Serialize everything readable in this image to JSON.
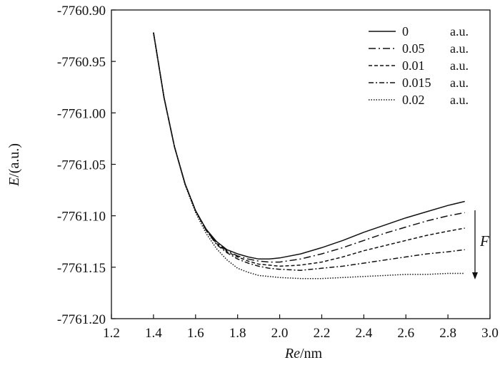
{
  "chart_data": {
    "type": "line",
    "xlabel": {
      "italic": "Re",
      "rest": "/nm"
    },
    "ylabel": {
      "italic": "E",
      "rest": "/(a.u.)"
    },
    "xlim": [
      1.2,
      3.0
    ],
    "ylim": [
      -7761.2,
      -7760.9
    ],
    "x_ticks": [
      "1.2",
      "1.4",
      "1.6",
      "1.8",
      "2.0",
      "2.2",
      "2.4",
      "2.6",
      "2.8",
      "3.0"
    ],
    "y_ticks": [
      "-7760.90",
      "-7760.95",
      "-7761.00",
      "-7761.05",
      "-7761.10",
      "-7761.15",
      "-7761.20"
    ],
    "x_tick_values": [
      1.2,
      1.4,
      1.6,
      1.8,
      2.0,
      2.2,
      2.4,
      2.6,
      2.8,
      3.0
    ],
    "y_tick_values": [
      -7760.9,
      -7760.95,
      -7761.0,
      -7761.05,
      -7761.1,
      -7761.15,
      -7761.2
    ],
    "grid": false,
    "legend_position": "top-right",
    "legend_unit": "a.u.",
    "x": [
      1.4,
      1.45,
      1.5,
      1.55,
      1.6,
      1.65,
      1.7,
      1.75,
      1.8,
      1.85,
      1.9,
      1.95,
      2.0,
      2.1,
      2.2,
      2.3,
      2.4,
      2.5,
      2.6,
      2.7,
      2.8,
      2.88
    ],
    "series": [
      {
        "name": "0",
        "dash": "solid",
        "values": [
          -7760.922,
          -7760.985,
          -7761.033,
          -7761.069,
          -7761.095,
          -7761.113,
          -7761.125,
          -7761.133,
          -7761.137,
          -7761.14,
          -7761.142,
          -7761.142,
          -7761.141,
          -7761.137,
          -7761.131,
          -7761.124,
          -7761.116,
          -7761.109,
          -7761.102,
          -7761.096,
          -7761.09,
          -7761.086
        ]
      },
      {
        "name": "0.05",
        "dash": "dashdot",
        "values": [
          -7760.922,
          -7760.985,
          -7761.033,
          -7761.069,
          -7761.095,
          -7761.113,
          -7761.126,
          -7761.134,
          -7761.139,
          -7761.142,
          -7761.144,
          -7761.145,
          -7761.145,
          -7761.142,
          -7761.137,
          -7761.131,
          -7761.124,
          -7761.117,
          -7761.111,
          -7761.105,
          -7761.1,
          -7761.097
        ]
      },
      {
        "name": "0.01",
        "dash": "dashed",
        "values": [
          -7760.922,
          -7760.985,
          -7761.033,
          -7761.069,
          -7761.095,
          -7761.114,
          -7761.127,
          -7761.135,
          -7761.14,
          -7761.144,
          -7761.147,
          -7761.148,
          -7761.149,
          -7761.148,
          -7761.145,
          -7761.14,
          -7761.134,
          -7761.129,
          -7761.124,
          -7761.119,
          -7761.115,
          -7761.112
        ]
      },
      {
        "name": "0.015",
        "dash": "dashdot-fine",
        "values": [
          -7760.922,
          -7760.985,
          -7761.033,
          -7761.069,
          -7761.095,
          -7761.114,
          -7761.128,
          -7761.136,
          -7761.142,
          -7761.146,
          -7761.149,
          -7761.151,
          -7761.152,
          -7761.153,
          -7761.151,
          -7761.149,
          -7761.146,
          -7761.143,
          -7761.14,
          -7761.137,
          -7761.135,
          -7761.133
        ]
      },
      {
        "name": "0.02",
        "dash": "dotted",
        "values": [
          -7760.922,
          -7760.985,
          -7761.033,
          -7761.07,
          -7761.097,
          -7761.117,
          -7761.132,
          -7761.143,
          -7761.151,
          -7761.155,
          -7761.158,
          -7761.159,
          -7761.16,
          -7761.161,
          -7761.161,
          -7761.16,
          -7761.159,
          -7761.158,
          -7761.157,
          -7761.157,
          -7761.156,
          -7761.156
        ]
      }
    ],
    "annotation": {
      "text": "F",
      "arrow": "down"
    }
  }
}
